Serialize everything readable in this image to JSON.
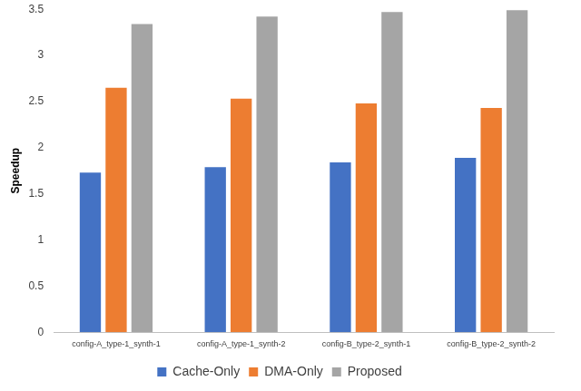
{
  "chart_data": {
    "type": "bar",
    "y_label": "Speedup",
    "categories": [
      "config-A_type-1_synth-1",
      "config-A_type-1_synth-2",
      "config-B_type-2_synth-1",
      "config-B_type-2_synth-2"
    ],
    "series": [
      {
        "name": "Cache-Only",
        "color": "#4472c4",
        "values": [
          1.73,
          1.79,
          1.84,
          1.89
        ]
      },
      {
        "name": "DMA-Only",
        "color": "#ed7d31",
        "values": [
          2.65,
          2.53,
          2.48,
          2.43
        ]
      },
      {
        "name": "Proposed",
        "color": "#a5a5a5",
        "values": [
          3.34,
          3.42,
          3.47,
          3.49
        ]
      }
    ],
    "ylim": [
      0,
      3.5
    ],
    "yticks": [
      0,
      0.5,
      1,
      1.5,
      2,
      2.5,
      3,
      3.5
    ],
    "grid": false,
    "legend": "bottom"
  }
}
